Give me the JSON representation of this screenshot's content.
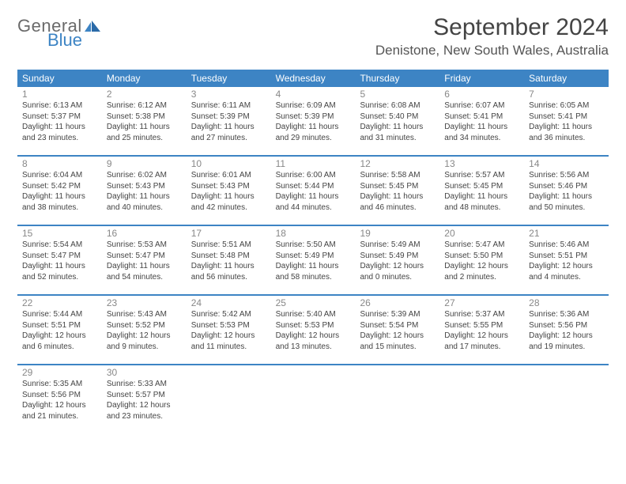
{
  "logo": {
    "line1": "General",
    "line2": "Blue"
  },
  "title": "September 2024",
  "location": "Denistone, New South Wales, Australia",
  "colors": {
    "header_bg": "#3d84c4",
    "header_text": "#ffffff",
    "rule": "#3d84c4",
    "body_text": "#444444",
    "daynum_text": "#888888",
    "logo_gray": "#6a6a6a",
    "logo_blue": "#3d84c4",
    "background": "#ffffff"
  },
  "layout": {
    "columns": 7,
    "rows": 5,
    "type": "table",
    "cell_fontsize_pt": 7.5,
    "daynum_fontsize_pt": 9,
    "header_fontsize_pt": 9,
    "title_fontsize_pt": 22,
    "location_fontsize_pt": 13
  },
  "day_headers": [
    "Sunday",
    "Monday",
    "Tuesday",
    "Wednesday",
    "Thursday",
    "Friday",
    "Saturday"
  ],
  "weeks": [
    [
      {
        "n": "1",
        "sr": "6:13 AM",
        "ss": "5:37 PM",
        "d": "11 hours and 23 minutes."
      },
      {
        "n": "2",
        "sr": "6:12 AM",
        "ss": "5:38 PM",
        "d": "11 hours and 25 minutes."
      },
      {
        "n": "3",
        "sr": "6:11 AM",
        "ss": "5:39 PM",
        "d": "11 hours and 27 minutes."
      },
      {
        "n": "4",
        "sr": "6:09 AM",
        "ss": "5:39 PM",
        "d": "11 hours and 29 minutes."
      },
      {
        "n": "5",
        "sr": "6:08 AM",
        "ss": "5:40 PM",
        "d": "11 hours and 31 minutes."
      },
      {
        "n": "6",
        "sr": "6:07 AM",
        "ss": "5:41 PM",
        "d": "11 hours and 34 minutes."
      },
      {
        "n": "7",
        "sr": "6:05 AM",
        "ss": "5:41 PM",
        "d": "11 hours and 36 minutes."
      }
    ],
    [
      {
        "n": "8",
        "sr": "6:04 AM",
        "ss": "5:42 PM",
        "d": "11 hours and 38 minutes."
      },
      {
        "n": "9",
        "sr": "6:02 AM",
        "ss": "5:43 PM",
        "d": "11 hours and 40 minutes."
      },
      {
        "n": "10",
        "sr": "6:01 AM",
        "ss": "5:43 PM",
        "d": "11 hours and 42 minutes."
      },
      {
        "n": "11",
        "sr": "6:00 AM",
        "ss": "5:44 PM",
        "d": "11 hours and 44 minutes."
      },
      {
        "n": "12",
        "sr": "5:58 AM",
        "ss": "5:45 PM",
        "d": "11 hours and 46 minutes."
      },
      {
        "n": "13",
        "sr": "5:57 AM",
        "ss": "5:45 PM",
        "d": "11 hours and 48 minutes."
      },
      {
        "n": "14",
        "sr": "5:56 AM",
        "ss": "5:46 PM",
        "d": "11 hours and 50 minutes."
      }
    ],
    [
      {
        "n": "15",
        "sr": "5:54 AM",
        "ss": "5:47 PM",
        "d": "11 hours and 52 minutes."
      },
      {
        "n": "16",
        "sr": "5:53 AM",
        "ss": "5:47 PM",
        "d": "11 hours and 54 minutes."
      },
      {
        "n": "17",
        "sr": "5:51 AM",
        "ss": "5:48 PM",
        "d": "11 hours and 56 minutes."
      },
      {
        "n": "18",
        "sr": "5:50 AM",
        "ss": "5:49 PM",
        "d": "11 hours and 58 minutes."
      },
      {
        "n": "19",
        "sr": "5:49 AM",
        "ss": "5:49 PM",
        "d": "12 hours and 0 minutes."
      },
      {
        "n": "20",
        "sr": "5:47 AM",
        "ss": "5:50 PM",
        "d": "12 hours and 2 minutes."
      },
      {
        "n": "21",
        "sr": "5:46 AM",
        "ss": "5:51 PM",
        "d": "12 hours and 4 minutes."
      }
    ],
    [
      {
        "n": "22",
        "sr": "5:44 AM",
        "ss": "5:51 PM",
        "d": "12 hours and 6 minutes."
      },
      {
        "n": "23",
        "sr": "5:43 AM",
        "ss": "5:52 PM",
        "d": "12 hours and 9 minutes."
      },
      {
        "n": "24",
        "sr": "5:42 AM",
        "ss": "5:53 PM",
        "d": "12 hours and 11 minutes."
      },
      {
        "n": "25",
        "sr": "5:40 AM",
        "ss": "5:53 PM",
        "d": "12 hours and 13 minutes."
      },
      {
        "n": "26",
        "sr": "5:39 AM",
        "ss": "5:54 PM",
        "d": "12 hours and 15 minutes."
      },
      {
        "n": "27",
        "sr": "5:37 AM",
        "ss": "5:55 PM",
        "d": "12 hours and 17 minutes."
      },
      {
        "n": "28",
        "sr": "5:36 AM",
        "ss": "5:56 PM",
        "d": "12 hours and 19 minutes."
      }
    ],
    [
      {
        "n": "29",
        "sr": "5:35 AM",
        "ss": "5:56 PM",
        "d": "12 hours and 21 minutes."
      },
      {
        "n": "30",
        "sr": "5:33 AM",
        "ss": "5:57 PM",
        "d": "12 hours and 23 minutes."
      },
      null,
      null,
      null,
      null,
      null
    ]
  ]
}
